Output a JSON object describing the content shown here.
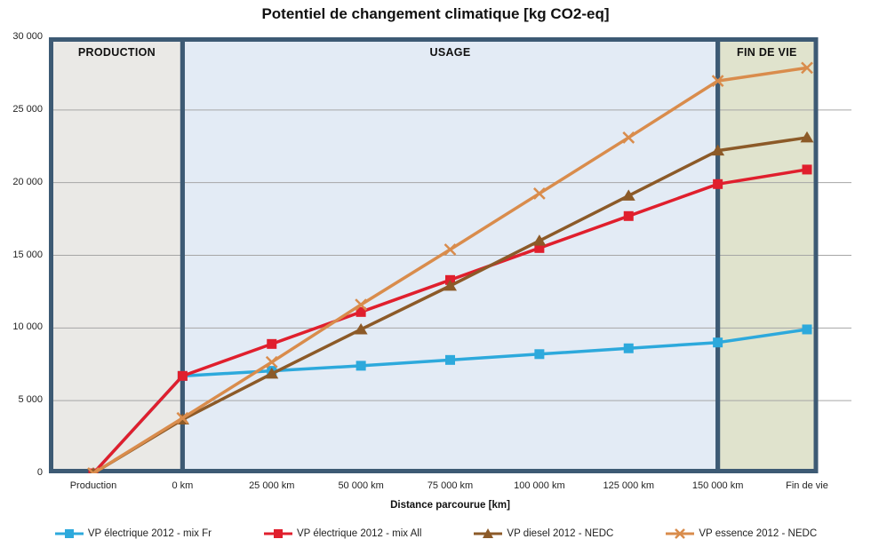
{
  "title": "Potentiel de changement climatique [kg CO2-eq]",
  "chart_data": {
    "type": "line",
    "categories": [
      "Production",
      "0 km",
      "25 000 km",
      "50 000 km",
      "75 000 km",
      "100 000 km",
      "125 000 km",
      "150 000 km",
      "Fin de vie"
    ],
    "series": [
      {
        "name": "VP électrique 2012 - mix Fr",
        "color": "#2DA9DC",
        "marker": "square",
        "values": [
          0,
          6700,
          7050,
          7400,
          7800,
          8200,
          8600,
          9000,
          9900
        ]
      },
      {
        "name": "VP électrique 2012 - mix All",
        "color": "#E01F2D",
        "marker": "square",
        "values": [
          0,
          6700,
          8900,
          11100,
          13300,
          15500,
          17700,
          19900,
          20900
        ]
      },
      {
        "name": "VP diesel 2012 - NEDC",
        "color": "#8C5A28",
        "marker": "triangle",
        "values": [
          0,
          3700,
          6850,
          9900,
          12900,
          16000,
          19100,
          22200,
          23100
        ]
      },
      {
        "name": "VP essence 2012 - NEDC",
        "color": "#D98C4C",
        "marker": "x",
        "values": [
          0,
          3800,
          7650,
          11600,
          15400,
          19250,
          23100,
          27000,
          27900
        ]
      }
    ],
    "xlabel": "Distance parcourue [km]",
    "ylabel": "",
    "ylim": [
      0,
      30000
    ],
    "ytick_step": 5000,
    "ytick_labels": [
      "0",
      "5 000",
      "10 000",
      "15 000",
      "20 000",
      "25 000",
      "30 000"
    ],
    "grid": true,
    "gridline_color": "#A6A6A6",
    "legend_position": "bottom",
    "region_border_color": "#3D5A74",
    "regions": [
      {
        "label": "PRODUCTION",
        "fill": "#EAE9E6",
        "from_category": 0,
        "to_category": 1
      },
      {
        "label": "USAGE",
        "fill": "#E3EBF5",
        "from_category": 1,
        "to_category": 7
      },
      {
        "label": "FIN DE VIE",
        "fill": "#E0E3CD",
        "from_category": 7,
        "to_category": 8
      }
    ]
  }
}
